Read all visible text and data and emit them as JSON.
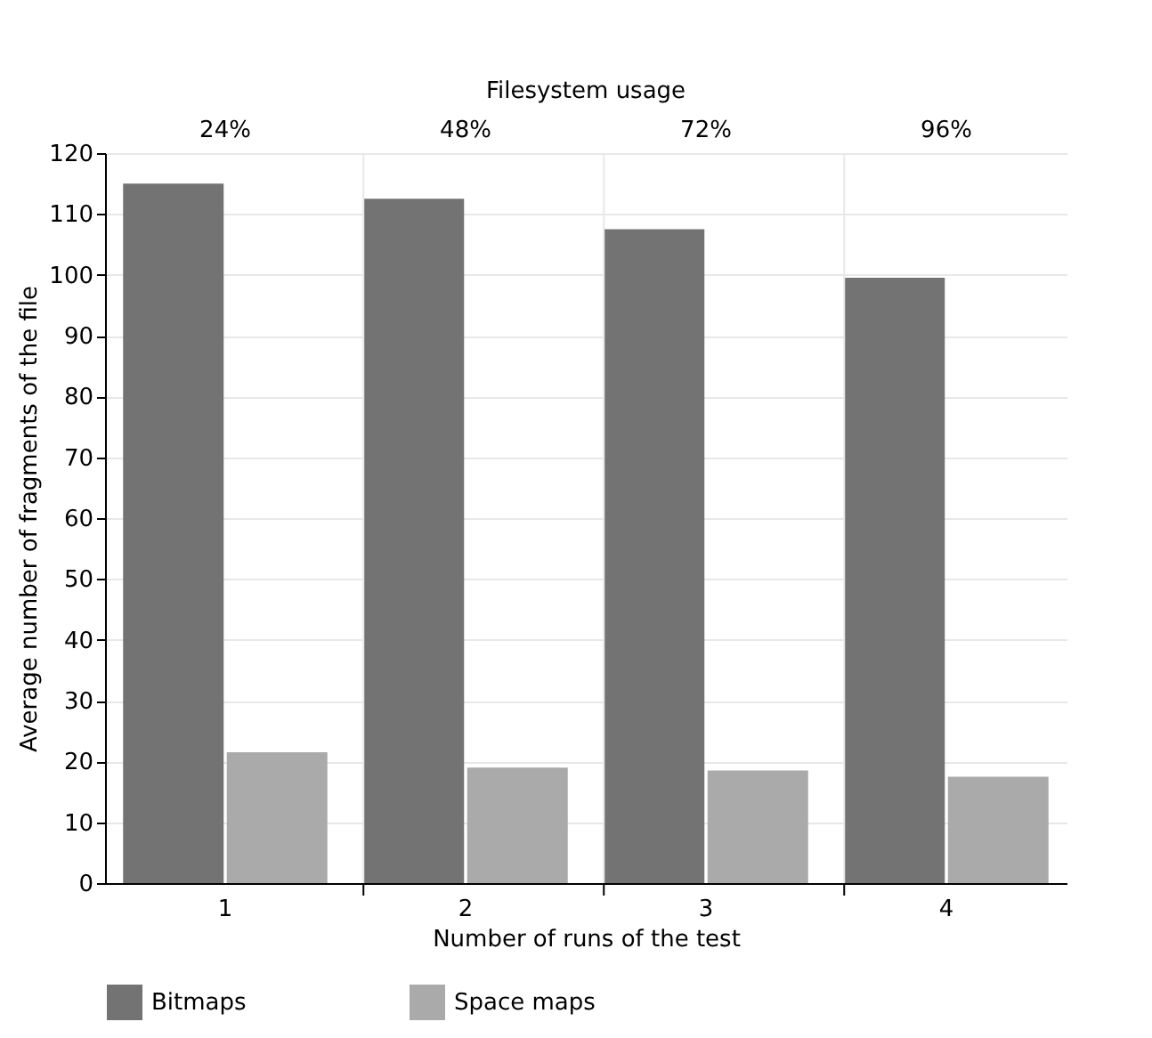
{
  "chart_data": {
    "type": "bar",
    "xlabel": "Number of runs of the test",
    "ylabel": "Average number of fragments of the file",
    "x2label": "Filesystem usage",
    "categories": [
      "1",
      "2",
      "3",
      "4"
    ],
    "annotations": [
      "24%",
      "48%",
      "72%",
      "96%"
    ],
    "series": [
      {
        "name": "Bitmaps",
        "color": "#737373",
        "values": [
          115,
          112.5,
          107.5,
          99.5
        ]
      },
      {
        "name": "Space maps",
        "color": "#aaaaaa",
        "values": [
          21.5,
          19,
          18.5,
          17.5
        ]
      }
    ],
    "ylim": [
      0,
      120
    ],
    "yticks": [
      0,
      10,
      20,
      30,
      40,
      50,
      60,
      70,
      80,
      90,
      100,
      110,
      120
    ],
    "grid": true,
    "legend": "bottom"
  }
}
